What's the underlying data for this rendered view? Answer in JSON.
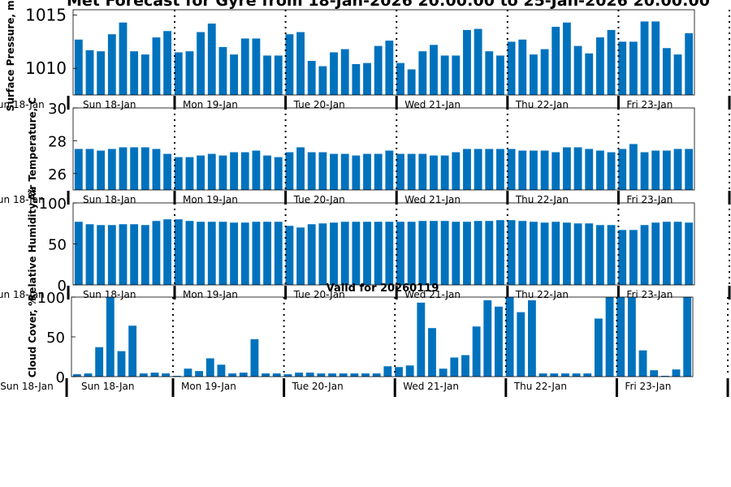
{
  "title": "Met Forecast for Gyre from 18-Jan-2026 20:00:00 to 25-Jan-2026 20:00:00",
  "subtitle": "Valid for 20260119",
  "bar_color": "#0072bd",
  "chart_data": [
    {
      "type": "bar",
      "ylabel": "Surface Pressure, mb",
      "ylim": [
        1007.5,
        1015.5
      ],
      "yticks": [
        1010,
        1015
      ],
      "xlabels": [
        "Sun 18-Jan",
        "Sun 18-Jan",
        "Mon 19-Jan",
        "Tue 20-Jan",
        "Wed 21-Jan",
        "Thu 22-Jan",
        "Fri 23-Jan"
      ],
      "values": [
        1012.7,
        1011.7,
        1011.6,
        1013.2,
        1014.3,
        1011.6,
        1011.3,
        1012.9,
        1013.5,
        1011.5,
        1011.6,
        1013.4,
        1014.2,
        1012.0,
        1011.3,
        1012.8,
        1012.8,
        1011.2,
        1011.2,
        1013.2,
        1013.4,
        1010.7,
        1010.2,
        1011.5,
        1011.8,
        1010.4,
        1010.5,
        1012.1,
        1012.6,
        1010.5,
        1009.9,
        1011.6,
        1012.2,
        1011.2,
        1011.2,
        1013.6,
        1013.7,
        1011.6,
        1011.2,
        1012.5,
        1012.7,
        1011.3,
        1011.8,
        1013.9,
        1014.3,
        1012.1,
        1011.4,
        1012.9,
        1013.6,
        1012.5,
        1012.5,
        1014.4,
        1014.4,
        1011.9,
        1011.3,
        1013.3
      ]
    },
    {
      "type": "bar",
      "ylabel": "Air Temperature, C",
      "ylim": [
        25,
        30
      ],
      "yticks": [
        26,
        28,
        30
      ],
      "xlabels": [
        "Sun 18-Jan",
        "Sun 18-Jan",
        "Mon 19-Jan",
        "Tue 20-Jan",
        "Wed 21-Jan",
        "Thu 22-Jan",
        "Fri 23-Jan"
      ],
      "values": [
        27.5,
        27.5,
        27.4,
        27.5,
        27.6,
        27.6,
        27.6,
        27.5,
        27.2,
        27.0,
        27.0,
        27.1,
        27.2,
        27.1,
        27.3,
        27.3,
        27.4,
        27.1,
        27.0,
        27.3,
        27.6,
        27.3,
        27.3,
        27.2,
        27.2,
        27.1,
        27.2,
        27.2,
        27.4,
        27.2,
        27.2,
        27.2,
        27.1,
        27.1,
        27.3,
        27.5,
        27.5,
        27.5,
        27.5,
        27.5,
        27.4,
        27.4,
        27.4,
        27.3,
        27.6,
        27.6,
        27.5,
        27.4,
        27.3,
        27.5,
        27.8,
        27.3,
        27.4,
        27.4,
        27.5,
        27.5
      ]
    },
    {
      "type": "bar",
      "ylabel": "Relative Humidity, %",
      "ylim": [
        0,
        100
      ],
      "yticks": [
        0,
        50,
        100
      ],
      "xlabels": [
        "Sun 18-Jan",
        "Sun 18-Jan",
        "Mon 19-Jan",
        "Tue 20-Jan",
        "Wed 21-Jan",
        "Thu 22-Jan",
        "Fri 23-Jan"
      ],
      "values": [
        77,
        74,
        73,
        73,
        74,
        74,
        73,
        78,
        80,
        80,
        78,
        77,
        77,
        77,
        76,
        76,
        77,
        77,
        77,
        72,
        70,
        74,
        75,
        76,
        77,
        77,
        77,
        77,
        77,
        77,
        77,
        78,
        78,
        78,
        77,
        77,
        78,
        78,
        79,
        79,
        78,
        77,
        76,
        77,
        76,
        75,
        75,
        73,
        73,
        67,
        67,
        73,
        76,
        77,
        77,
        76
      ]
    },
    {
      "type": "bar",
      "ylabel": "Cloud Cover, %",
      "ylim": [
        0,
        100
      ],
      "yticks": [
        0,
        50,
        100
      ],
      "xlabels": [
        "Sun 18-Jan",
        "Sun 18-Jan",
        "Mon 19-Jan",
        "Tue 20-Jan",
        "Wed 21-Jan",
        "Thu 22-Jan",
        "Fri 23-Jan"
      ],
      "values": [
        3,
        4,
        37,
        100,
        32,
        64,
        4,
        5,
        4,
        1,
        10,
        7,
        23,
        15,
        4,
        5,
        47,
        4,
        4,
        3,
        5,
        5,
        4,
        4,
        4,
        4,
        4,
        4,
        13,
        12,
        14,
        93,
        61,
        10,
        24,
        27,
        63,
        96,
        88,
        100,
        81,
        96,
        4,
        4,
        4,
        4,
        4,
        73,
        100,
        100,
        100,
        33,
        8,
        1,
        9,
        100
      ]
    }
  ]
}
